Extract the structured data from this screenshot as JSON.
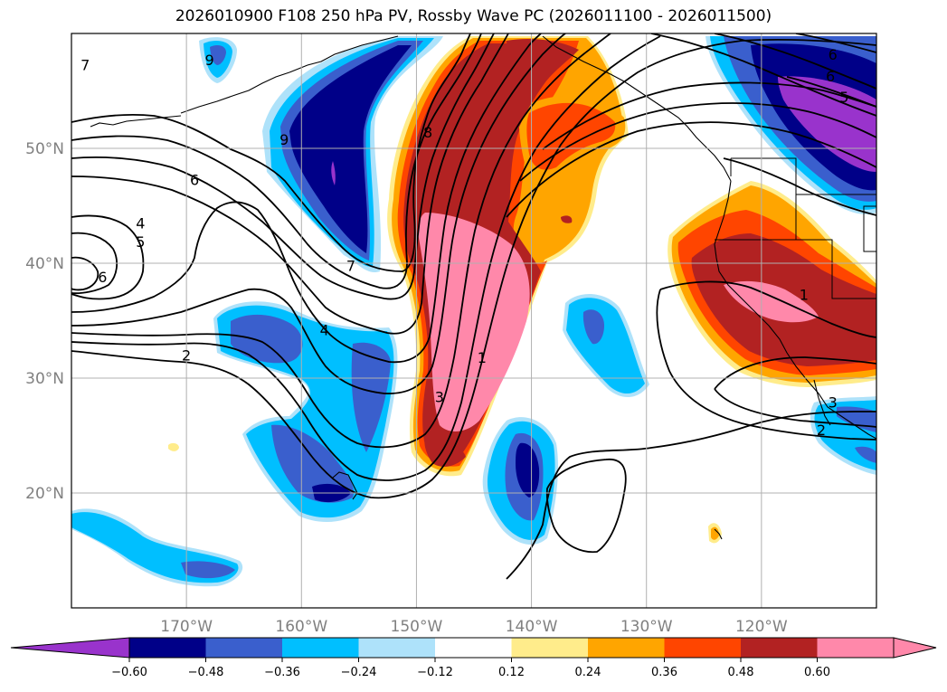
{
  "chart_data": {
    "type": "heatmap",
    "title": "2026010900 F108 250 hPa PV, Rossby Wave PC (2026011100 - 2026011500)",
    "field": "250 hPa PV Rossby wave principal component (shaded), PV contours (lines)",
    "lon_range": [
      -180,
      -110
    ],
    "lat_range": [
      10,
      60
    ],
    "x_ticks": [
      {
        "lon": -170,
        "label": "170°W"
      },
      {
        "lon": -160,
        "label": "160°W"
      },
      {
        "lon": -150,
        "label": "150°W"
      },
      {
        "lon": -140,
        "label": "140°W"
      },
      {
        "lon": -130,
        "label": "130°W"
      },
      {
        "lon": -120,
        "label": "120°W"
      }
    ],
    "y_ticks": [
      {
        "lat": 20,
        "label": "20°N"
      },
      {
        "lat": 30,
        "label": "30°N"
      },
      {
        "lat": 40,
        "label": "40°N"
      },
      {
        "lat": 50,
        "label": "50°N"
      }
    ],
    "colorbar": {
      "levels": [
        -0.6,
        -0.48,
        -0.36,
        -0.24,
        -0.12,
        0.12,
        0.24,
        0.36,
        0.48,
        0.6
      ],
      "tick_labels": [
        "−0.60",
        "−0.48",
        "−0.36",
        "−0.24",
        "−0.12",
        "0.12",
        "0.24",
        "0.36",
        "0.48",
        "0.60"
      ],
      "colors": [
        "#9933cc",
        "#000088",
        "#3a5fcd",
        "#00bfff",
        "#aee2fa",
        "#ffffff",
        "#ffec8b",
        "#ffa500",
        "#ff4500",
        "#b22222",
        "#ff88aa"
      ],
      "extend": "both"
    },
    "contour_labels": [
      {
        "text": "9",
        "lon": -168.0,
        "lat": 57.7
      },
      {
        "text": "9",
        "lon": -161.5,
        "lat": 50.8
      },
      {
        "text": "7",
        "lon": -178.8,
        "lat": 57.3
      },
      {
        "text": "6",
        "lon": -169.3,
        "lat": 47.3
      },
      {
        "text": "4",
        "lon": -174.0,
        "lat": 43.5
      },
      {
        "text": "5",
        "lon": -174.0,
        "lat": 41.9
      },
      {
        "text": "6",
        "lon": -177.3,
        "lat": 38.8
      },
      {
        "text": "2",
        "lon": -170.0,
        "lat": 32.0
      },
      {
        "text": "4",
        "lon": -158.0,
        "lat": 34.2
      },
      {
        "text": "7",
        "lon": -155.7,
        "lat": 39.8
      },
      {
        "text": "8",
        "lon": -149.0,
        "lat": 51.4
      },
      {
        "text": "3",
        "lon": -148.0,
        "lat": 28.4
      },
      {
        "text": "1",
        "lon": -144.3,
        "lat": 31.8
      },
      {
        "text": "1",
        "lon": -116.3,
        "lat": 37.3
      },
      {
        "text": "6",
        "lon": -113.8,
        "lat": 58.2
      },
      {
        "text": "6",
        "lon": -114.0,
        "lat": 56.3
      },
      {
        "text": "5",
        "lon": -112.8,
        "lat": 54.5
      },
      {
        "text": "3",
        "lon": -113.8,
        "lat": 27.9
      },
      {
        "text": "2",
        "lon": -114.8,
        "lat": 25.5
      }
    ]
  }
}
